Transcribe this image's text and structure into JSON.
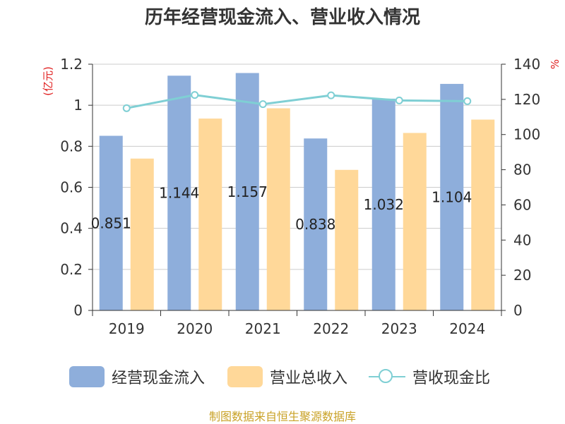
{
  "chart_data": {
    "type": "bar",
    "title": "历年经营现金流入、营业收入情况",
    "categories": [
      "2019",
      "2020",
      "2021",
      "2022",
      "2023",
      "2024"
    ],
    "series": [
      {
        "name": "经营现金流入",
        "type": "bar",
        "axis": "left",
        "color": "#8eaedb",
        "values": [
          0.851,
          1.144,
          1.157,
          0.838,
          1.032,
          1.104
        ]
      },
      {
        "name": "营业总收入",
        "type": "bar",
        "axis": "left",
        "color": "#ffd899",
        "values": [
          0.74,
          0.935,
          0.985,
          0.685,
          0.865,
          0.93
        ]
      },
      {
        "name": "营收现金比",
        "type": "line",
        "axis": "right",
        "color": "#7fcfd4",
        "values": [
          115,
          122.5,
          117.3,
          122.3,
          119.4,
          119
        ]
      }
    ],
    "data_labels": [
      "0.851",
      "1.144",
      "1.157",
      "0.838",
      "1.032",
      "1.104"
    ],
    "y_left": {
      "label": "(亿元)",
      "min": 0,
      "max": 1.2,
      "ticks": [
        0,
        0.2,
        0.4,
        0.6,
        0.8,
        1,
        1.2
      ],
      "tick_labels": [
        "0",
        "0.2",
        "0.4",
        "0.6",
        "0.8",
        "1",
        "1.2"
      ]
    },
    "y_right": {
      "label": "%",
      "min": 0,
      "max": 140,
      "ticks": [
        0,
        20,
        40,
        60,
        80,
        100,
        120,
        140
      ],
      "tick_labels": [
        "0",
        "20",
        "40",
        "60",
        "80",
        "100",
        "120",
        "140"
      ]
    },
    "grid": true,
    "legend_position": "bottom"
  },
  "source_note": "制图数据来自恒生聚源数据库"
}
